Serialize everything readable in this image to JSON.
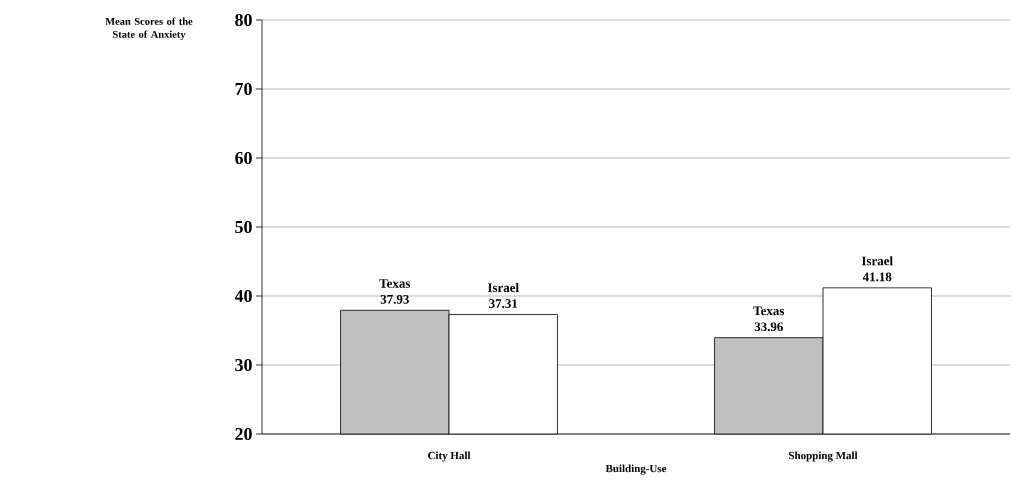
{
  "chart_data": {
    "type": "bar",
    "xlabel": "Building-Use",
    "ylabel": "Mean Scores of the State of  Anxiety",
    "categories": [
      "City Hall",
      "Shopping Mall"
    ],
    "series": [
      {
        "name": "Texas",
        "color": "#c0c0c0",
        "values": [
          37.93,
          33.96
        ]
      },
      {
        "name": "Israel",
        "color": "#ffffff",
        "values": [
          37.31,
          41.18
        ]
      }
    ],
    "ylim": [
      20,
      80
    ],
    "yticks": [
      20,
      30,
      40,
      50,
      60,
      70,
      80
    ],
    "grid": "y",
    "legend": false,
    "data_labels": true
  }
}
